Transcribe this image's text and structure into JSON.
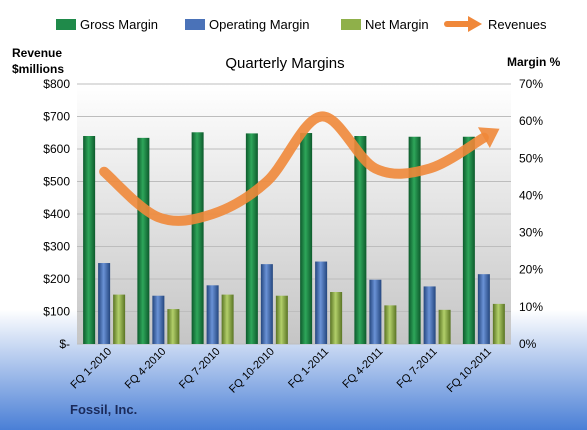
{
  "chart_data": {
    "type": "bar",
    "title": "Quarterly Margins",
    "categories": [
      "FQ 1-2010",
      "FQ 4-2010",
      "FQ 7-2010",
      "FQ 10-2010",
      "FQ 1-2011",
      "FQ 4-2011",
      "FQ 7-2011",
      "FQ 10-2011"
    ],
    "series": [
      {
        "name": "Gross Margin",
        "axis": "right",
        "kind": "bar",
        "color": "#1f8a4a",
        "values": [
          56.0,
          55.5,
          57.0,
          56.7,
          56.8,
          56.0,
          55.8,
          55.8
        ]
      },
      {
        "name": "Operating Margin",
        "axis": "right",
        "kind": "bar",
        "color": "#4a72b8",
        "values": [
          21.8,
          13.0,
          15.8,
          21.5,
          22.2,
          17.3,
          15.5,
          18.8
        ]
      },
      {
        "name": "Net Margin",
        "axis": "right",
        "kind": "bar",
        "color": "#8fb04a",
        "values": [
          13.3,
          9.4,
          13.3,
          13.0,
          14.0,
          10.4,
          9.2,
          10.8
        ]
      },
      {
        "name": "Revenues",
        "axis": "left",
        "kind": "line",
        "color": "#f0883a",
        "values": [
          530,
          390,
          400,
          500,
          700,
          540,
          540,
          635
        ]
      }
    ],
    "ylabel_left": [
      "Revenue",
      "$millions"
    ],
    "ylabel_right": "Margin %",
    "ylim_left": [
      0,
      800
    ],
    "ylim_right": [
      0,
      70
    ],
    "left_ticks": [
      "$-",
      "$100",
      "$200",
      "$300",
      "$400",
      "$500",
      "$600",
      "$700",
      "$800"
    ],
    "right_ticks": [
      "0%",
      "10%",
      "20%",
      "30%",
      "40%",
      "50%",
      "60%",
      "70%"
    ],
    "grid": true,
    "legend": "top"
  },
  "footer": "Fossil, Inc."
}
